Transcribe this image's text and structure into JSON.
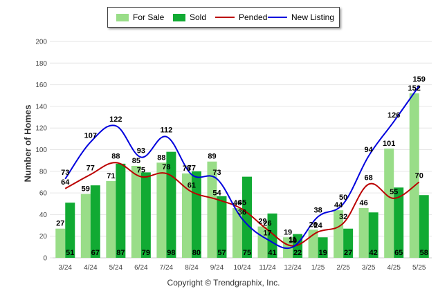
{
  "chart_data": {
    "type": "bar",
    "categories": [
      "3/24",
      "4/24",
      "5/24",
      "6/24",
      "7/24",
      "8/24",
      "9/24",
      "10/24",
      "11/24",
      "12/24",
      "1/25",
      "2/25",
      "3/25",
      "4/25",
      "5/25"
    ],
    "series": [
      {
        "name": "For Sale",
        "kind": "bar",
        "color": "#99dd88",
        "values": [
          27,
          59,
          71,
          85,
          88,
          78,
          89,
          46,
          29,
          19,
          26,
          44,
          46,
          101,
          152
        ]
      },
      {
        "name": "Sold",
        "kind": "bar",
        "color": "#11aa33",
        "values": [
          51,
          67,
          87,
          79,
          98,
          80,
          57,
          75,
          41,
          22,
          19,
          27,
          42,
          65,
          58
        ]
      },
      {
        "name": "Pended",
        "kind": "line",
        "color": "#bb0000",
        "values": [
          64,
          77,
          88,
          75,
          78,
          61,
          54,
          45,
          26,
          11,
          24,
          32,
          68,
          55,
          70
        ]
      },
      {
        "name": "New Listing",
        "kind": "line",
        "color": "#0000dd",
        "values": [
          73,
          107,
          122,
          93,
          112,
          77,
          73,
          36,
          17,
          10,
          38,
          50,
          94,
          126,
          159
        ]
      }
    ],
    "ylabel": "Number of Homes",
    "ylim": [
      0,
      200
    ],
    "yticks": [
      0,
      20,
      40,
      60,
      80,
      100,
      120,
      140,
      160,
      180,
      200
    ],
    "grid": true,
    "legend_position": "top-center"
  },
  "footer": "Copyright © Trendgraphix, Inc."
}
